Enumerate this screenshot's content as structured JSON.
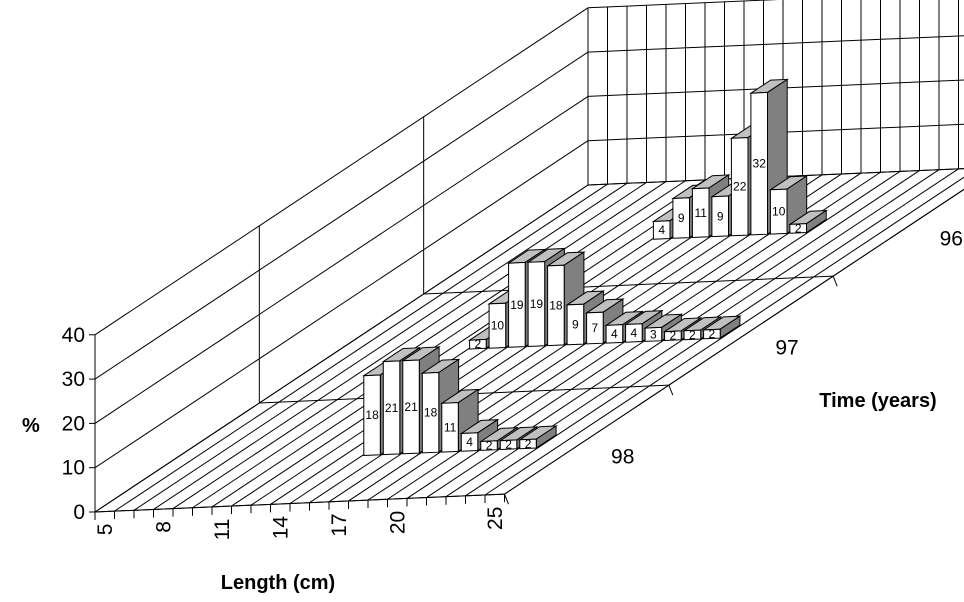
{
  "chart_data": {
    "type": "bar",
    "variant": "3d-column",
    "xlabel": "Length (cm)",
    "ylabel": "%",
    "zlabel": "Time (years)",
    "ylim": [
      0,
      40
    ],
    "yticks": [
      0,
      10,
      20,
      30,
      40
    ],
    "xticks": [
      5,
      8,
      11,
      14,
      17,
      20,
      25
    ],
    "z_categories": [
      "98",
      "97",
      "96"
    ],
    "grid": true,
    "series": [
      {
        "name": "98",
        "points": [
          {
            "x": 14,
            "value": 18
          },
          {
            "x": 15,
            "value": 21
          },
          {
            "x": 16,
            "value": 21
          },
          {
            "x": 17,
            "value": 18
          },
          {
            "x": 18,
            "value": 11
          },
          {
            "x": 19,
            "value": 4
          },
          {
            "x": 20,
            "value": 2
          },
          {
            "x": 21,
            "value": 2
          },
          {
            "x": 22,
            "value": 2
          }
        ]
      },
      {
        "name": "97",
        "points": [
          {
            "x": 11,
            "value": 2
          },
          {
            "x": 12,
            "value": 10
          },
          {
            "x": 13,
            "value": 19
          },
          {
            "x": 14,
            "value": 19
          },
          {
            "x": 15,
            "value": 18
          },
          {
            "x": 16,
            "value": 9
          },
          {
            "x": 17,
            "value": 7
          },
          {
            "x": 18,
            "value": 4
          },
          {
            "x": 19,
            "value": 4
          },
          {
            "x": 20,
            "value": 3
          },
          {
            "x": 21,
            "value": 2
          },
          {
            "x": 22,
            "value": 2
          },
          {
            "x": 23,
            "value": 2
          }
        ]
      },
      {
        "name": "96",
        "points": [
          {
            "x": 12,
            "value": 4
          },
          {
            "x": 13,
            "value": 9
          },
          {
            "x": 14,
            "value": 11
          },
          {
            "x": 15,
            "value": 9
          },
          {
            "x": 16,
            "value": 22
          },
          {
            "x": 17,
            "value": 32
          },
          {
            "x": 18,
            "value": 10
          },
          {
            "x": 19,
            "value": 2
          }
        ]
      }
    ]
  }
}
